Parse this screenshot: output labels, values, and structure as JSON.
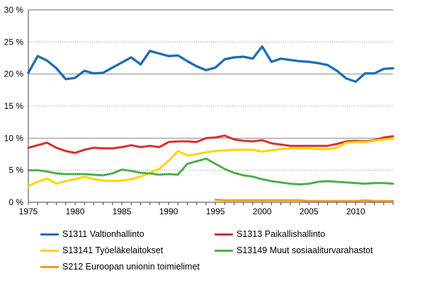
{
  "chart_data": {
    "type": "line",
    "title": "",
    "xlabel": "",
    "ylabel": "",
    "ylim": [
      0,
      30
    ],
    "grid": "horizontal, solid line each 10 %, dotted line each 5 %",
    "legend_position": "bottom",
    "x": [
      1975,
      1976,
      1977,
      1978,
      1979,
      1980,
      1981,
      1982,
      1983,
      1984,
      1985,
      1986,
      1987,
      1988,
      1989,
      1990,
      1991,
      1992,
      1993,
      1994,
      1995,
      1996,
      1997,
      1998,
      1999,
      2000,
      2001,
      2002,
      2003,
      2004,
      2005,
      2006,
      2007,
      2008,
      2009,
      2010,
      2011,
      2012,
      2013,
      2014
    ],
    "yticks": [
      0,
      5,
      10,
      15,
      20,
      25,
      30
    ],
    "ytick_labels": [
      "0 %",
      "5 %",
      "10 %",
      "15 %",
      "20 %",
      "25 %",
      "30 %"
    ],
    "xticks": [
      1975,
      1980,
      1985,
      1990,
      1995,
      2000,
      2005,
      2010
    ],
    "xtick_labels": [
      "1975",
      "1980",
      "1985",
      "1990",
      "1995",
      "2000",
      "2005",
      "2010"
    ],
    "series": [
      {
        "id": "S1311",
        "label": "S1311 Valtionhallinto",
        "color": "#1e6cb5",
        "values": [
          20.2,
          22.8,
          22.1,
          20.9,
          19.2,
          19.4,
          20.5,
          20.1,
          20.2,
          21.0,
          21.8,
          22.6,
          21.5,
          23.6,
          23.2,
          22.8,
          22.9,
          22.0,
          21.2,
          20.6,
          21.0,
          22.3,
          22.6,
          22.7,
          22.4,
          24.3,
          21.9,
          22.4,
          22.2,
          22.0,
          21.9,
          21.7,
          21.4,
          20.5,
          19.3,
          18.8,
          20.1,
          20.1,
          20.8,
          20.9
        ]
      },
      {
        "id": "S1313",
        "label": "S1313 Paikallishallinto",
        "color": "#d7312e",
        "values": [
          8.5,
          8.9,
          9.3,
          8.5,
          8.0,
          7.7,
          8.2,
          8.5,
          8.4,
          8.4,
          8.6,
          8.9,
          8.6,
          8.8,
          8.6,
          9.4,
          9.5,
          9.5,
          9.4,
          10.0,
          10.1,
          10.4,
          9.8,
          9.6,
          9.5,
          9.7,
          9.2,
          9.0,
          8.8,
          8.8,
          8.8,
          8.8,
          8.8,
          9.1,
          9.5,
          9.6,
          9.5,
          9.7,
          10.1,
          10.3
        ]
      },
      {
        "id": "S13141",
        "label": "S13141 Työeläkelaitokset",
        "color": "#ffd400",
        "values": [
          2.5,
          3.2,
          3.7,
          2.9,
          3.3,
          3.6,
          4.0,
          3.6,
          3.4,
          3.3,
          3.4,
          3.6,
          4.0,
          4.6,
          5.2,
          6.5,
          8.0,
          7.3,
          7.5,
          7.8,
          8.0,
          8.1,
          8.2,
          8.2,
          8.2,
          7.9,
          8.1,
          8.3,
          8.4,
          8.4,
          8.4,
          8.3,
          8.3,
          8.5,
          9.3,
          9.4,
          9.4,
          9.6,
          9.8,
          9.9
        ]
      },
      {
        "id": "S13149",
        "label": "S13149 Muut sosiaaliturvarahastot",
        "color": "#4fae4c",
        "values": [
          5.0,
          5.0,
          4.8,
          4.5,
          4.4,
          4.4,
          4.4,
          4.3,
          4.2,
          4.5,
          5.1,
          4.9,
          4.6,
          4.5,
          4.3,
          4.4,
          4.3,
          6.0,
          6.4,
          6.8,
          6.0,
          5.2,
          4.6,
          4.2,
          4.0,
          3.6,
          3.3,
          3.1,
          2.9,
          2.8,
          2.9,
          3.2,
          3.3,
          3.2,
          3.1,
          3.0,
          2.9,
          3.0,
          3.0,
          2.9
        ]
      },
      {
        "id": "S212",
        "label": "S212 Euroopan unionin toimielimet",
        "color": "#f39b1d",
        "values": [
          null,
          null,
          null,
          null,
          null,
          null,
          null,
          null,
          null,
          null,
          null,
          null,
          null,
          null,
          null,
          null,
          null,
          null,
          null,
          null,
          0.4,
          0.3,
          0.3,
          0.3,
          0.3,
          0.3,
          0.3,
          0.3,
          0.3,
          0.3,
          0.2,
          0.2,
          0.2,
          0.2,
          0.2,
          0.2,
          0.3,
          0.2,
          0.2,
          0.2
        ]
      }
    ]
  }
}
